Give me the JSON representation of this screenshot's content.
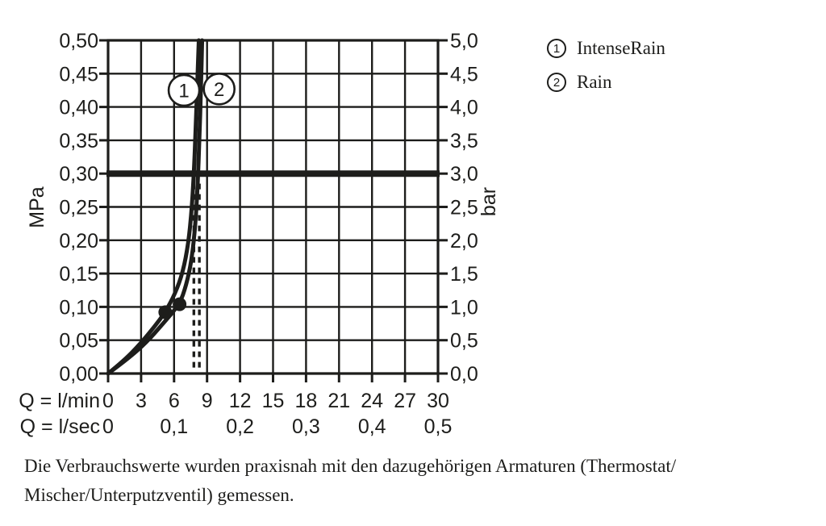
{
  "page": {
    "background": "#ffffff",
    "ink": "#1d1d1b"
  },
  "legend": {
    "items": [
      {
        "symbol": "1",
        "label": "IntenseRain"
      },
      {
        "symbol": "2",
        "label": "Rain"
      }
    ]
  },
  "footnote": {
    "line1": "Die Verbrauchswerte wurden praxisnah mit den dazugehörigen Armaturen (Thermostat/",
    "line2": "Mischer/Unterputzventil) gemessen."
  },
  "chart_data": {
    "type": "line",
    "title": "",
    "grid": true,
    "legend_position": "top-right",
    "x_axis": {
      "label_primary": "Q = l/min",
      "label_secondary": "Q = l/sec",
      "range_lmin": [
        0,
        30
      ],
      "ticks_lmin": {
        "values": [
          0,
          3,
          6,
          9,
          12,
          15,
          18,
          21,
          24,
          27,
          30
        ],
        "labels": [
          "0",
          "3",
          "6",
          "9",
          "12",
          "15",
          "18",
          "21",
          "24",
          "27",
          "30"
        ]
      },
      "ticks_lsec": {
        "values": [
          0,
          6,
          12,
          18,
          24,
          30
        ],
        "labels": [
          "0",
          "0,1",
          "0,2",
          "0,3",
          "0,4",
          "0,5"
        ]
      }
    },
    "y_axis_left": {
      "unit": "MPa",
      "range": [
        0,
        0.5
      ],
      "values": [
        0,
        0.05,
        0.1,
        0.15,
        0.2,
        0.25,
        0.3,
        0.35,
        0.4,
        0.45,
        0.5
      ],
      "labels": [
        "0,00",
        "0,05",
        "0,10",
        "0,15",
        "0,20",
        "0,25",
        "0,30",
        "0,35",
        "0,40",
        "0,45",
        "0,50"
      ]
    },
    "y_axis_right": {
      "unit": "bar",
      "range": [
        0,
        5
      ],
      "values": [
        0,
        0.05,
        0.1,
        0.15,
        0.2,
        0.25,
        0.3,
        0.35,
        0.4,
        0.45,
        0.5
      ],
      "labels": [
        "0,0",
        "0,5",
        "1,0",
        "1,5",
        "2,0",
        "2,5",
        "3,0",
        "3,5",
        "4,0",
        "4,5",
        "5,0"
      ]
    },
    "reference_line": {
      "mpa": 0.3,
      "bar": 3.0
    },
    "dashed_guides": {
      "x_lmin": [
        7.8,
        8.3
      ],
      "top_mpa": 0.285
    },
    "series": [
      {
        "name": "IntenseRain",
        "number": "1",
        "label_pos": [
          6.9,
          0.425
        ],
        "marker": [
          5.2,
          0.092
        ],
        "flow_at_3bar_lmin": 7.8,
        "points": [
          [
            0,
            0
          ],
          [
            1.5,
            0.02
          ],
          [
            3.0,
            0.046
          ],
          [
            4.2,
            0.07
          ],
          [
            5.2,
            0.092
          ],
          [
            6.1,
            0.12
          ],
          [
            6.8,
            0.152
          ],
          [
            7.3,
            0.195
          ],
          [
            7.6,
            0.245
          ],
          [
            7.8,
            0.3
          ],
          [
            7.95,
            0.36
          ],
          [
            8.1,
            0.43
          ],
          [
            8.25,
            0.5
          ]
        ]
      },
      {
        "name": "Rain",
        "number": "2",
        "label_pos": [
          10.1,
          0.427
        ],
        "marker": [
          6.5,
          0.104
        ],
        "flow_at_3bar_lmin": 8.3,
        "points": [
          [
            0,
            0
          ],
          [
            1.8,
            0.022
          ],
          [
            3.5,
            0.047
          ],
          [
            4.9,
            0.073
          ],
          [
            6.5,
            0.104
          ],
          [
            7.1,
            0.132
          ],
          [
            7.6,
            0.17
          ],
          [
            7.95,
            0.225
          ],
          [
            8.15,
            0.285
          ],
          [
            8.3,
            0.35
          ],
          [
            8.45,
            0.43
          ],
          [
            8.55,
            0.5
          ]
        ]
      }
    ]
  }
}
